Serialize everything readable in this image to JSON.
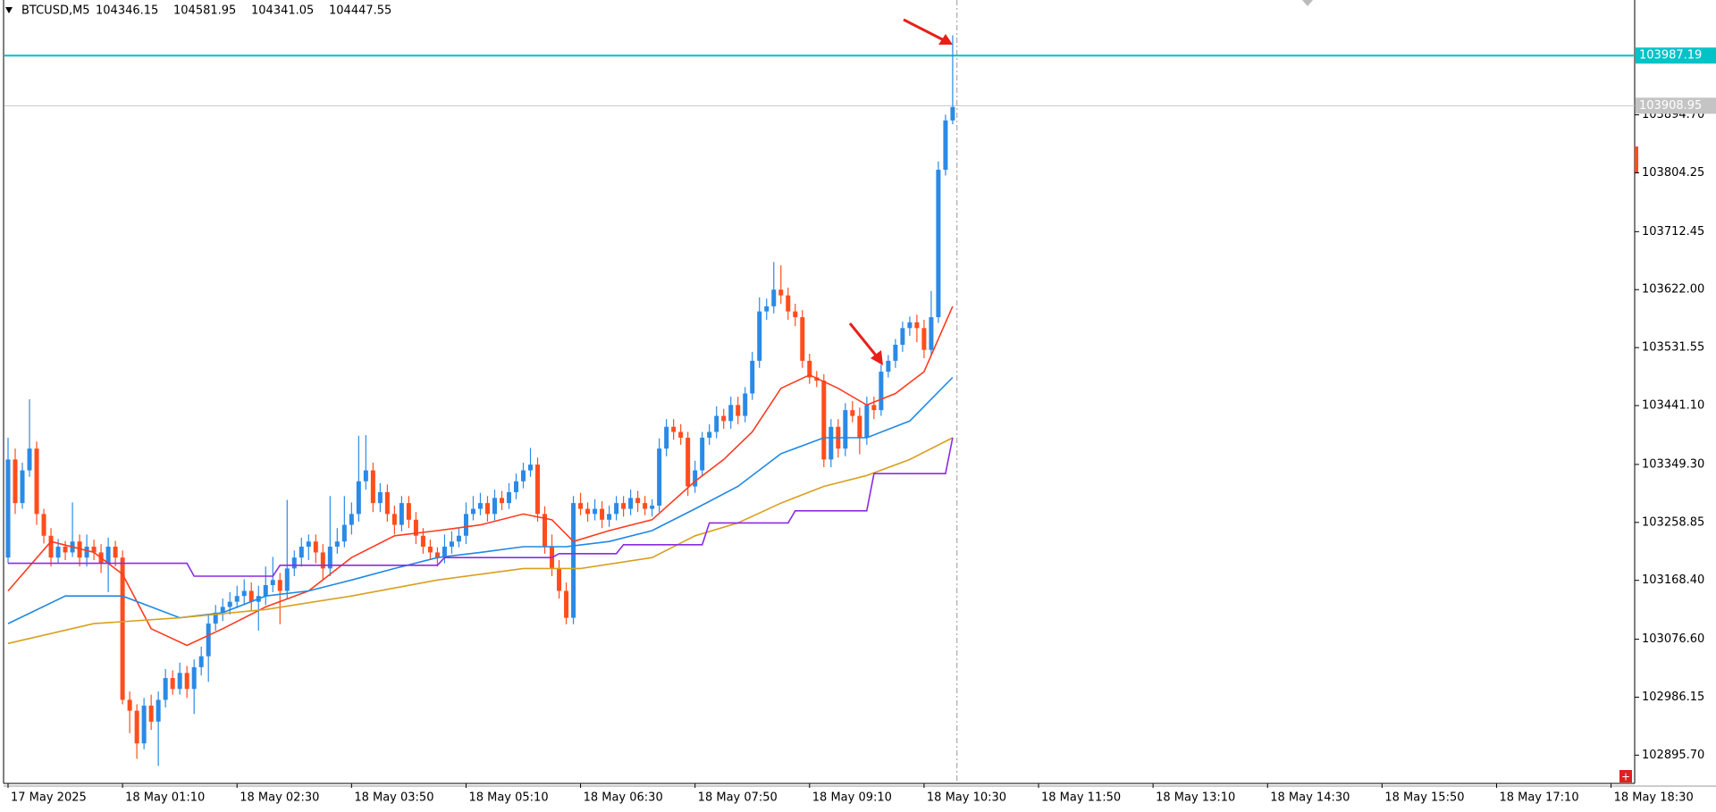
{
  "chart_data": {
    "type": "candlestick",
    "title": "BTCUSD,M5",
    "header_values": [
      104346.15,
      104581.95,
      104341.05,
      104447.55
    ],
    "bull_color": "#2b8ae6",
    "bear_color": "#ff4d1c",
    "ohlc": [
      [
        103204,
        103391,
        103195,
        103357
      ],
      [
        103357,
        103374,
        103272,
        103289
      ],
      [
        103289,
        103352,
        103280,
        103340
      ],
      [
        103340,
        103451,
        103330,
        103374
      ],
      [
        103374,
        103385,
        103255,
        103272
      ],
      [
        103272,
        103280,
        103226,
        103238
      ],
      [
        103238,
        103250,
        103190,
        103204
      ],
      [
        103204,
        103233,
        103195,
        103221
      ],
      [
        103221,
        103230,
        103200,
        103212
      ],
      [
        103212,
        103290,
        103205,
        103229
      ],
      [
        103229,
        103240,
        103190,
        103204
      ],
      [
        103204,
        103240,
        103190,
        103221
      ],
      [
        103221,
        103232,
        103200,
        103212
      ],
      [
        103212,
        103225,
        103180,
        103195
      ],
      [
        103195,
        103235,
        103150,
        103221
      ],
      [
        103221,
        103230,
        103190,
        103204
      ],
      [
        103204,
        103215,
        102975,
        102982
      ],
      [
        102982,
        102995,
        102930,
        102965
      ],
      [
        102965,
        102975,
        102890,
        102914
      ],
      [
        102914,
        102985,
        102905,
        102973
      ],
      [
        102973,
        102990,
        102935,
        102948
      ],
      [
        102948,
        102995,
        102879,
        102982
      ],
      [
        102982,
        103030,
        102970,
        103016
      ],
      [
        103016,
        103028,
        102990,
        102999
      ],
      [
        102999,
        103040,
        102990,
        103024
      ],
      [
        103024,
        103035,
        102985,
        102999
      ],
      [
        102999,
        103045,
        102960,
        103033
      ],
      [
        103033,
        103065,
        103020,
        103050
      ],
      [
        103050,
        103115,
        103010,
        103101
      ],
      [
        103101,
        103130,
        103090,
        103118
      ],
      [
        103118,
        103140,
        103105,
        103127
      ],
      [
        103127,
        103150,
        103115,
        103135
      ],
      [
        103135,
        103160,
        103125,
        103144
      ],
      [
        103144,
        103170,
        103130,
        103152
      ],
      [
        103152,
        103165,
        103120,
        103135
      ],
      [
        103135,
        103160,
        103090,
        103144
      ],
      [
        103144,
        103190,
        103130,
        103161
      ],
      [
        103161,
        103205,
        103150,
        103169
      ],
      [
        103169,
        103180,
        103100,
        103152
      ],
      [
        103152,
        103294,
        103140,
        103187
      ],
      [
        103187,
        103215,
        103175,
        103204
      ],
      [
        103204,
        103235,
        103190,
        103221
      ],
      [
        103221,
        103240,
        103200,
        103229
      ],
      [
        103229,
        103240,
        103195,
        103212
      ],
      [
        103212,
        103225,
        103170,
        103187
      ],
      [
        103187,
        103300,
        103175,
        103221
      ],
      [
        103221,
        103250,
        103210,
        103229
      ],
      [
        103229,
        103300,
        103220,
        103255
      ],
      [
        103255,
        103290,
        103240,
        103272
      ],
      [
        103272,
        103394,
        103260,
        103323
      ],
      [
        103323,
        103395,
        103310,
        103340
      ],
      [
        103340,
        103352,
        103275,
        103289
      ],
      [
        103289,
        103320,
        103275,
        103306
      ],
      [
        103306,
        103318,
        103260,
        103272
      ],
      [
        103272,
        103285,
        103240,
        103255
      ],
      [
        103255,
        103300,
        103245,
        103289
      ],
      [
        103289,
        103300,
        103250,
        103263
      ],
      [
        103263,
        103275,
        103225,
        103238
      ],
      [
        103238,
        103250,
        103210,
        103221
      ],
      [
        103221,
        103232,
        103200,
        103212
      ],
      [
        103212,
        103220,
        103190,
        103204
      ],
      [
        103204,
        103240,
        103195,
        103221
      ],
      [
        103221,
        103245,
        103210,
        103229
      ],
      [
        103229,
        103250,
        103220,
        103238
      ],
      [
        103238,
        103290,
        103225,
        103272
      ],
      [
        103272,
        103300,
        103262,
        103280
      ],
      [
        103280,
        103305,
        103270,
        103289
      ],
      [
        103289,
        103300,
        103260,
        103272
      ],
      [
        103272,
        103310,
        103262,
        103297
      ],
      [
        103297,
        103308,
        103278,
        103289
      ],
      [
        103289,
        103320,
        103280,
        103306
      ],
      [
        103306,
        103335,
        103295,
        103323
      ],
      [
        103323,
        103352,
        103312,
        103340
      ],
      [
        103340,
        103375,
        103330,
        103349
      ],
      [
        103349,
        103360,
        103260,
        103272
      ],
      [
        103272,
        103284,
        103210,
        103221
      ],
      [
        103221,
        103240,
        103175,
        103187
      ],
      [
        103187,
        103200,
        103140,
        103152
      ],
      [
        103152,
        103165,
        103100,
        103110
      ],
      [
        103110,
        103300,
        103100,
        103289
      ],
      [
        103289,
        103305,
        103270,
        103280
      ],
      [
        103280,
        103290,
        103260,
        103272
      ],
      [
        103272,
        103295,
        103262,
        103280
      ],
      [
        103280,
        103292,
        103250,
        103263
      ],
      [
        103263,
        103285,
        103252,
        103272
      ],
      [
        103272,
        103300,
        103262,
        103289
      ],
      [
        103289,
        103300,
        103268,
        103280
      ],
      [
        103280,
        103310,
        103270,
        103297
      ],
      [
        103297,
        103308,
        103275,
        103289
      ],
      [
        103289,
        103300,
        103270,
        103280
      ],
      [
        103280,
        103295,
        103268,
        103285
      ],
      [
        103285,
        103390,
        103275,
        103374
      ],
      [
        103374,
        103420,
        103362,
        103408
      ],
      [
        103408,
        103420,
        103388,
        103400
      ],
      [
        103400,
        103412,
        103380,
        103391
      ],
      [
        103391,
        103400,
        103300,
        103315
      ],
      [
        103315,
        103355,
        103305,
        103340
      ],
      [
        103340,
        103400,
        103330,
        103391
      ],
      [
        103391,
        103412,
        103380,
        103400
      ],
      [
        103400,
        103440,
        103390,
        103425
      ],
      [
        103425,
        103436,
        103405,
        103417
      ],
      [
        103417,
        103455,
        103405,
        103442
      ],
      [
        103442,
        103455,
        103412,
        103425
      ],
      [
        103425,
        103470,
        103415,
        103460
      ],
      [
        103460,
        103525,
        103450,
        103511
      ],
      [
        103511,
        103610,
        103500,
        103588
      ],
      [
        103588,
        103608,
        103575,
        103596
      ],
      [
        103596,
        103665,
        103585,
        103622
      ],
      [
        103622,
        103660,
        103600,
        103613
      ],
      [
        103613,
        103625,
        103575,
        103588
      ],
      [
        103588,
        103600,
        103565,
        103579
      ],
      [
        103579,
        103590,
        103500,
        103511
      ],
      [
        103511,
        103522,
        103475,
        103485
      ],
      [
        103485,
        103495,
        103470,
        103480
      ],
      [
        103480,
        103490,
        103345,
        103357
      ],
      [
        103357,
        103420,
        103345,
        103408
      ],
      [
        103408,
        103420,
        103360,
        103374
      ],
      [
        103374,
        103445,
        103362,
        103434
      ],
      [
        103434,
        103448,
        103415,
        103425
      ],
      [
        103425,
        103438,
        103365,
        103391
      ],
      [
        103391,
        103455,
        103380,
        103442
      ],
      [
        103442,
        103455,
        103420,
        103434
      ],
      [
        103434,
        103505,
        103425,
        103494
      ],
      [
        103494,
        103520,
        103485,
        103511
      ],
      [
        103511,
        103545,
        103500,
        103536
      ],
      [
        103536,
        103572,
        103525,
        103562
      ],
      [
        103562,
        103580,
        103550,
        103571
      ],
      [
        103571,
        103583,
        103540,
        103562
      ],
      [
        103562,
        103575,
        103515,
        103528
      ],
      [
        103528,
        103620,
        103518,
        103579
      ],
      [
        103579,
        103822,
        103570,
        103809
      ],
      [
        103809,
        103895,
        103800,
        103886
      ],
      [
        103886,
        104019,
        103880,
        103907
      ]
    ],
    "lines": [
      {
        "color": "#ff3b1f",
        "x": [
          0,
          6,
          12,
          16,
          20,
          25,
          30,
          36,
          42,
          48,
          54,
          60,
          66,
          72,
          76,
          79,
          84,
          90,
          96,
          100,
          104,
          108,
          112,
          116,
          120,
          124,
          128,
          132
        ],
        "values": [
          103152,
          103229,
          103212,
          103178,
          103093,
          103067,
          103093,
          103127,
          103152,
          103204,
          103238,
          103246,
          103255,
          103272,
          103263,
          103229,
          103246,
          103263,
          103323,
          103357,
          103400,
          103468,
          103489,
          103468,
          103442,
          103460,
          103494,
          103596
        ]
      },
      {
        "color": "#1e88e5",
        "x": [
          0,
          8,
          16,
          24,
          30,
          36,
          42,
          48,
          54,
          60,
          66,
          72,
          78,
          84,
          90,
          96,
          102,
          108,
          114,
          120,
          126,
          132
        ],
        "values": [
          103101,
          103144,
          103144,
          103110,
          103118,
          103144,
          103152,
          103169,
          103187,
          103204,
          103212,
          103221,
          103221,
          103229,
          103246,
          103280,
          103315,
          103366,
          103391,
          103391,
          103417,
          103485
        ]
      },
      {
        "color": "#d9a01e",
        "x": [
          0,
          12,
          24,
          36,
          48,
          60,
          72,
          80,
          90,
          96,
          102,
          108,
          114,
          120,
          126,
          132
        ],
        "values": [
          103070,
          103101,
          103110,
          103123,
          103144,
          103169,
          103187,
          103187,
          103204,
          103238,
          103258,
          103289,
          103315,
          103332,
          103357,
          103391
        ]
      },
      {
        "color": "#8a2be2",
        "x": [
          0,
          25,
          26,
          37,
          38,
          60,
          61,
          76,
          77,
          85,
          86,
          97,
          98,
          109,
          110,
          120,
          121,
          131,
          132
        ],
        "values": [
          103195,
          103195,
          103175,
          103175,
          103192,
          103192,
          103204,
          103204,
          103210,
          103210,
          103224,
          103224,
          103258,
          103258,
          103277,
          103277,
          103335,
          103335,
          103391
        ]
      }
    ],
    "levels": [
      {
        "value": 103987.19,
        "color": "#00c3c8"
      },
      {
        "value": 103908.95,
        "color": "#c4c4c4"
      }
    ],
    "xlim": [
      -0.5,
      227.3
    ],
    "xticks": [
      {
        "value": 0,
        "label": "17 May 2025"
      },
      {
        "value": 16,
        "label": "18 May 01:10"
      },
      {
        "value": 32,
        "label": "18 May 02:30"
      },
      {
        "value": 48,
        "label": "18 May 03:50"
      },
      {
        "value": 64,
        "label": "18 May 05:10"
      },
      {
        "value": 80,
        "label": "18 May 06:30"
      },
      {
        "value": 96,
        "label": "18 May 07:50"
      },
      {
        "value": 112,
        "label": "18 May 09:10"
      },
      {
        "value": 128,
        "label": "18 May 10:30"
      },
      {
        "value": 144,
        "label": "18 May 11:50"
      },
      {
        "value": 160,
        "label": "18 May 13:10"
      },
      {
        "value": 176,
        "label": "18 May 14:30"
      },
      {
        "value": 192,
        "label": "18 May 15:50"
      },
      {
        "value": 208,
        "label": "18 May 17:10"
      },
      {
        "value": 224,
        "label": "18 May 18:30"
      }
    ],
    "ylim": [
      102851.6,
      104073.9
    ],
    "yticks": [
      {
        "value": 103894.7,
        "label": "103894.70"
      },
      103804.25,
      103712.45,
      {
        "value": 103622,
        "label": "103622.00"
      },
      103531.55,
      {
        "value": 103441.1,
        "label": "103441.10"
      },
      {
        "value": 103349.3,
        "label": "103349.30"
      },
      103258.85,
      {
        "value": 103168.4,
        "label": "103168.40"
      },
      {
        "value": 103076.6,
        "label": "103076.60"
      },
      102986.15,
      {
        "value": 102895.7,
        "label": "102895.70"
      }
    ]
  }
}
